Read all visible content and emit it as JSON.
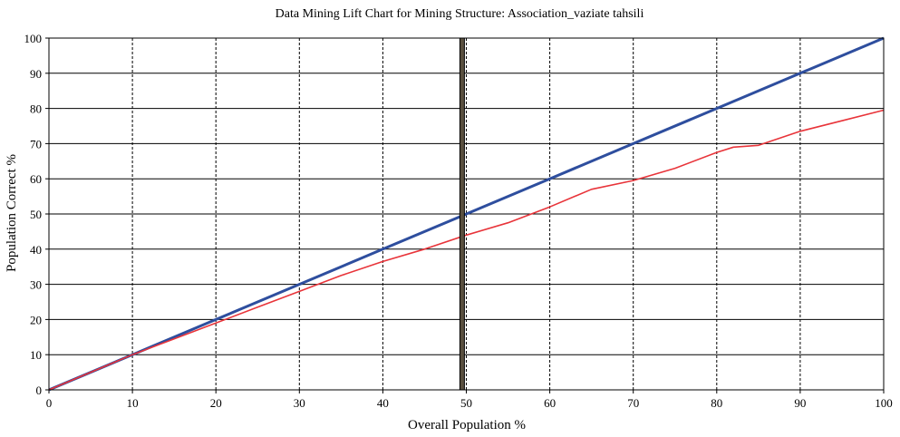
{
  "chart_data": {
    "type": "line",
    "title": "Data Mining Lift Chart for Mining Structure: Association_vaziate tahsili",
    "xlabel": "Overall Population %",
    "ylabel": "Population Correct %",
    "xlim": [
      0,
      100
    ],
    "ylim": [
      0,
      100
    ],
    "xticks": [
      "0",
      "10",
      "20",
      "30",
      "40",
      "50",
      "60",
      "70",
      "80",
      "90",
      "100"
    ],
    "yticks": [
      "0",
      "10",
      "20",
      "30",
      "40",
      "50",
      "60",
      "70",
      "80",
      "90",
      "100"
    ],
    "grid": "dashed",
    "legend": "none",
    "marker_line_x": 49.5,
    "series": [
      {
        "color": "#2e4e9e",
        "x": [
          0,
          10,
          20,
          30,
          40,
          50,
          60,
          70,
          80,
          90,
          100
        ],
        "y": [
          0,
          10,
          20,
          30,
          40,
          50,
          60,
          70,
          80,
          90,
          100
        ]
      },
      {
        "color": "#e8343a",
        "x": [
          0,
          10,
          15,
          20,
          25,
          30,
          35,
          40,
          45,
          50,
          55,
          60,
          65,
          70,
          75,
          80,
          82,
          85,
          90,
          95,
          100
        ],
        "y": [
          0,
          10,
          14.5,
          19,
          23.5,
          28,
          32.5,
          36.5,
          40,
          44,
          47.5,
          52,
          57,
          59.5,
          63,
          67.5,
          69,
          69.5,
          73.5,
          76.5,
          79.5
        ]
      }
    ]
  }
}
